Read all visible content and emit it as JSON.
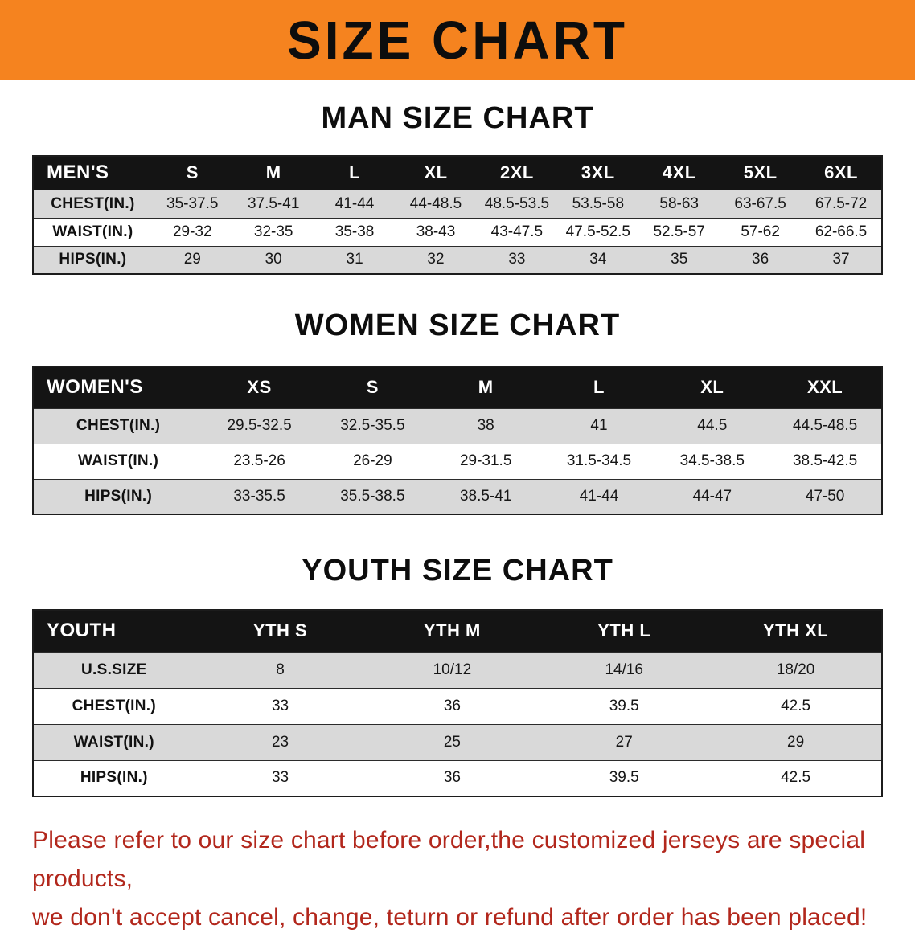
{
  "banner": {
    "title": "SIZE CHART",
    "bg_color": "#f5831f"
  },
  "men": {
    "heading": "MAN SIZE CHART",
    "header": [
      "MEN'S",
      "S",
      "M",
      "L",
      "XL",
      "2XL",
      "3XL",
      "4XL",
      "5XL",
      "6XL"
    ],
    "rows": [
      {
        "label": "CHEST(IN.)",
        "values": [
          "35-37.5",
          "37.5-41",
          "41-44",
          "44-48.5",
          "48.5-53.5",
          "53.5-58",
          "58-63",
          "63-67.5",
          "67.5-72"
        ]
      },
      {
        "label": "WAIST(IN.)",
        "values": [
          "29-32",
          "32-35",
          "35-38",
          "38-43",
          "43-47.5",
          "47.5-52.5",
          "52.5-57",
          "57-62",
          "62-66.5"
        ]
      },
      {
        "label": "HIPS(IN.)",
        "values": [
          "29",
          "30",
          "31",
          "32",
          "33",
          "34",
          "35",
          "36",
          "37"
        ]
      }
    ]
  },
  "women": {
    "heading": "WOMEN SIZE CHART",
    "header": [
      "WOMEN'S",
      "XS",
      "S",
      "M",
      "L",
      "XL",
      "XXL"
    ],
    "rows": [
      {
        "label": "CHEST(IN.)",
        "values": [
          "29.5-32.5",
          "32.5-35.5",
          "38",
          "41",
          "44.5",
          "44.5-48.5"
        ]
      },
      {
        "label": "WAIST(IN.)",
        "values": [
          "23.5-26",
          "26-29",
          "29-31.5",
          "31.5-34.5",
          "34.5-38.5",
          "38.5-42.5"
        ]
      },
      {
        "label": "HIPS(IN.)",
        "values": [
          "33-35.5",
          "35.5-38.5",
          "38.5-41",
          "41-44",
          "44-47",
          "47-50"
        ]
      }
    ]
  },
  "youth": {
    "heading": "YOUTH SIZE CHART",
    "header": [
      "YOUTH",
      "YTH S",
      "YTH M",
      "YTH L",
      "YTH XL"
    ],
    "rows": [
      {
        "label": "U.S.SIZE",
        "values": [
          "8",
          "10/12",
          "14/16",
          "18/20"
        ]
      },
      {
        "label": "CHEST(IN.)",
        "values": [
          "33",
          "36",
          "39.5",
          "42.5"
        ]
      },
      {
        "label": "WAIST(IN.)",
        "values": [
          "23",
          "25",
          "27",
          "29"
        ]
      },
      {
        "label": "HIPS(IN.)",
        "values": [
          "33",
          "36",
          "39.5",
          "42.5"
        ]
      }
    ]
  },
  "footer": {
    "line1": "Please refer to our size chart before order,the customized jerseys are special products,",
    "line2": "we don't accept cancel, change, teturn or refund after order has been placed!"
  }
}
